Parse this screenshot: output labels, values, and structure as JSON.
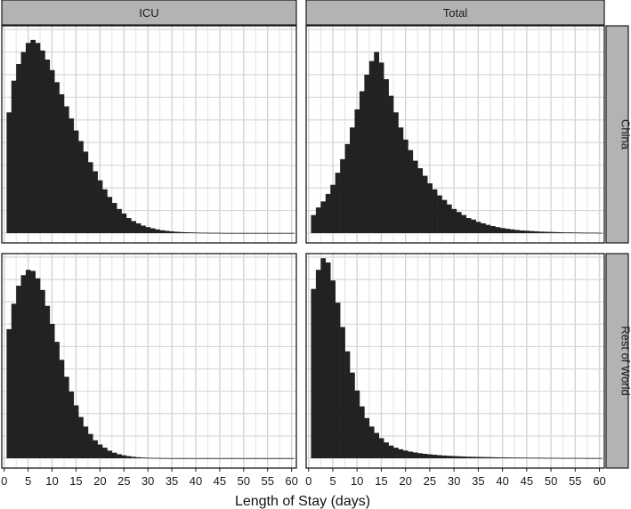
{
  "chart_data": {
    "type": "bar",
    "layout": "faceted-histogram",
    "xlabel": "Length of Stay (days)",
    "ylabel": "",
    "xlim": [
      -0.5,
      61
    ],
    "x_ticks": [
      0,
      5,
      10,
      15,
      20,
      25,
      30,
      35,
      40,
      45,
      50,
      55,
      60
    ],
    "y_ticks_shown": false,
    "grid": true,
    "bin_width": 1,
    "bar_color": "#222222",
    "column_facets": [
      "ICU",
      "Total"
    ],
    "row_facets": [
      "China",
      "Rest of World"
    ],
    "panels": [
      {
        "column": "ICU",
        "row": "China",
        "ylim": [
          0,
          0.135
        ],
        "x": [
          1,
          2,
          3,
          4,
          5,
          6,
          7,
          8,
          9,
          10,
          11,
          12,
          13,
          14,
          15,
          16,
          17,
          18,
          19,
          20,
          21,
          22,
          23,
          24,
          25,
          26,
          27,
          28,
          29,
          30,
          31,
          32,
          33,
          34,
          35,
          36,
          37,
          38,
          39,
          40,
          41,
          42,
          43,
          44,
          45,
          46,
          47,
          48,
          49,
          50,
          51,
          52,
          53,
          54,
          55,
          56,
          57,
          58,
          59,
          60
        ],
        "values": [
          0.08,
          0.101,
          0.112,
          0.12,
          0.126,
          0.128,
          0.126,
          0.121,
          0.115,
          0.108,
          0.1,
          0.092,
          0.084,
          0.076,
          0.068,
          0.061,
          0.054,
          0.047,
          0.041,
          0.035,
          0.029,
          0.024,
          0.02,
          0.016,
          0.013,
          0.01,
          0.008,
          0.0065,
          0.005,
          0.004,
          0.0032,
          0.0025,
          0.0019,
          0.0015,
          0.0012,
          0.0009,
          0.0007,
          0.0006,
          0.0005,
          0.0004,
          0.0003,
          0.0003,
          0.0002,
          0.0002,
          0.0002,
          0.0001,
          0.0001,
          0.0001,
          0.0001,
          0.0001,
          0.0001,
          0.0001,
          0.0001,
          0.0001,
          0.0001,
          0.0001,
          0.0001,
          0.0001,
          0.0001,
          0.0001
        ]
      },
      {
        "column": "Total",
        "row": "China",
        "ylim": [
          0,
          0.135
        ],
        "x": [
          1,
          2,
          3,
          4,
          5,
          6,
          7,
          8,
          9,
          10,
          11,
          12,
          13,
          14,
          15,
          16,
          17,
          18,
          19,
          20,
          21,
          22,
          23,
          24,
          25,
          26,
          27,
          28,
          29,
          30,
          31,
          32,
          33,
          34,
          35,
          36,
          37,
          38,
          39,
          40,
          41,
          42,
          43,
          44,
          45,
          46,
          47,
          48,
          49,
          50,
          51,
          52,
          53,
          54,
          55,
          56,
          57,
          58,
          59,
          60
        ],
        "values": [
          0.012,
          0.017,
          0.021,
          0.026,
          0.032,
          0.04,
          0.049,
          0.059,
          0.07,
          0.082,
          0.094,
          0.105,
          0.114,
          0.12,
          0.113,
          0.102,
          0.091,
          0.08,
          0.07,
          0.062,
          0.055,
          0.048,
          0.043,
          0.038,
          0.033,
          0.029,
          0.025,
          0.022,
          0.019,
          0.016,
          0.014,
          0.012,
          0.01,
          0.009,
          0.0075,
          0.0065,
          0.0055,
          0.0047,
          0.004,
          0.0034,
          0.0029,
          0.0025,
          0.0021,
          0.0018,
          0.0016,
          0.0014,
          0.0012,
          0.001,
          0.0009,
          0.0008,
          0.0007,
          0.0006,
          0.0005,
          0.0005,
          0.0004,
          0.0004,
          0.0003,
          0.0003,
          0.0003,
          0.0002
        ]
      },
      {
        "column": "ICU",
        "row": "Rest of World",
        "ylim": [
          0,
          0.19
        ],
        "x": [
          1,
          2,
          3,
          4,
          5,
          6,
          7,
          8,
          9,
          10,
          11,
          12,
          13,
          14,
          15,
          16,
          17,
          18,
          19,
          20,
          21,
          22,
          23,
          24,
          25,
          26,
          27,
          28,
          29,
          30,
          31,
          32,
          33,
          34,
          35,
          36,
          37,
          38,
          39,
          40,
          41,
          42,
          43,
          44,
          45,
          46,
          47,
          48,
          49,
          50,
          51,
          52,
          53,
          54,
          55,
          56,
          57,
          58,
          59,
          60
        ],
        "values": [
          0.122,
          0.146,
          0.163,
          0.173,
          0.178,
          0.177,
          0.17,
          0.159,
          0.144,
          0.127,
          0.11,
          0.093,
          0.077,
          0.063,
          0.05,
          0.039,
          0.03,
          0.023,
          0.017,
          0.013,
          0.01,
          0.0072,
          0.0053,
          0.0038,
          0.0028,
          0.002,
          0.0014,
          0.001,
          0.0007,
          0.0005,
          0.0004,
          0.0003,
          0.0002,
          0.0002,
          0.0001,
          0.0001,
          0.0001,
          0.0001,
          0.0001,
          0.0001,
          0.0001,
          0.0001,
          0.0001,
          0.0001,
          0.0001,
          0.0001,
          0.0001,
          0.0001,
          0.0001,
          0.0001,
          0.0001,
          0.0001,
          0.0001,
          0.0001,
          0.0001,
          0.0001,
          0.0001,
          0.0001,
          0.0001,
          0.0001
        ]
      },
      {
        "column": "Total",
        "row": "Rest of World",
        "ylim": [
          0,
          0.19
        ],
        "x": [
          1,
          2,
          3,
          4,
          5,
          6,
          7,
          8,
          9,
          10,
          11,
          12,
          13,
          14,
          15,
          16,
          17,
          18,
          19,
          20,
          21,
          22,
          23,
          24,
          25,
          26,
          27,
          28,
          29,
          30,
          31,
          32,
          33,
          34,
          35,
          36,
          37,
          38,
          39,
          40,
          41,
          42,
          43,
          44,
          45,
          46,
          47,
          48,
          49,
          50,
          51,
          52,
          53,
          54,
          55,
          56,
          57,
          58,
          59,
          60
        ],
        "values": [
          0.16,
          0.178,
          0.189,
          0.185,
          0.168,
          0.147,
          0.124,
          0.101,
          0.081,
          0.064,
          0.049,
          0.038,
          0.03,
          0.024,
          0.019,
          0.015,
          0.012,
          0.01,
          0.0085,
          0.0073,
          0.0063,
          0.0055,
          0.0048,
          0.0042,
          0.0037,
          0.0033,
          0.0029,
          0.0026,
          0.0023,
          0.0021,
          0.0019,
          0.0017,
          0.0015,
          0.0014,
          0.0013,
          0.0012,
          0.0011,
          0.001,
          0.0009,
          0.0008,
          0.0008,
          0.0007,
          0.0007,
          0.0006,
          0.0006,
          0.0005,
          0.0005,
          0.0005,
          0.0004,
          0.0004,
          0.0004,
          0.0003,
          0.0003,
          0.0003,
          0.0003,
          0.0003,
          0.0002,
          0.0002,
          0.0002,
          0.0002
        ]
      }
    ]
  }
}
